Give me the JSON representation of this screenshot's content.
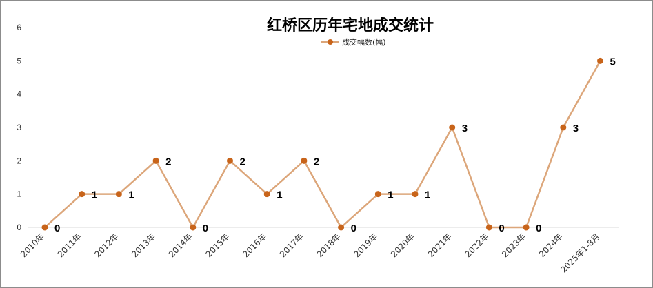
{
  "chart_data": {
    "type": "line",
    "title": "红桥区历年宅地成交统计",
    "categories": [
      "2010年",
      "2011年",
      "2012年",
      "2013年",
      "2014年",
      "2015年",
      "2016年",
      "2017年",
      "2018年",
      "2019年",
      "2020年",
      "2021年",
      "2022年",
      "2023年",
      "2024年",
      "2025年1-8月"
    ],
    "series": [
      {
        "name": "成交幅数(幅)",
        "values": [
          0,
          1,
          1,
          2,
          0,
          2,
          1,
          2,
          0,
          1,
          1,
          3,
          0,
          0,
          3,
          5
        ]
      }
    ],
    "ylim": [
      0,
      6
    ],
    "yticks": [
      0,
      1,
      2,
      3,
      4,
      5,
      6
    ],
    "grid": false,
    "legend": "top-center",
    "data_labels": true,
    "colors": {
      "line": "#dca67a",
      "marker": "#c8641a",
      "axis": "#d9d9d9"
    }
  }
}
